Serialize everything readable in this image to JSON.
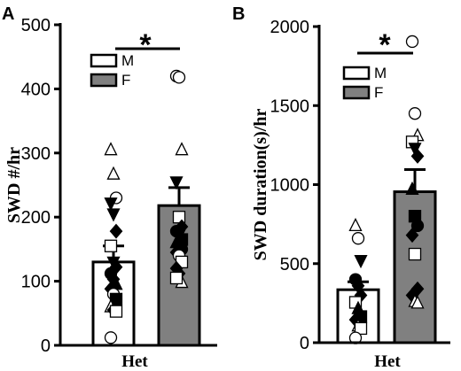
{
  "chart_data": [
    {
      "panel": "A",
      "type": "bar",
      "ylabel": "SWD #/hr",
      "xlabel": "Het",
      "ylim": [
        0,
        500
      ],
      "yticks": [
        "0",
        "100",
        "200",
        "300",
        "400",
        "500"
      ],
      "legend": {
        "placement": "top-left",
        "entries": [
          "M",
          "F"
        ]
      },
      "significance": "*",
      "series": [
        {
          "name": "M",
          "mean": 130,
          "sem": 25,
          "fill": "#ffffff",
          "points": [
            {
              "y": 305,
              "shape": "triangle-open"
            },
            {
              "y": 267,
              "shape": "triangle-open"
            },
            {
              "y": 230,
              "shape": "circle-open"
            },
            {
              "y": 222,
              "shape": "triangle-down-filled"
            },
            {
              "y": 205,
              "shape": "triangle-down-filled"
            },
            {
              "y": 178,
              "shape": "diamond-filled"
            },
            {
              "y": 155,
              "shape": "square-open"
            },
            {
              "y": 130,
              "shape": "triangle-down-filled"
            },
            {
              "y": 122,
              "shape": "diamond-filled"
            },
            {
              "y": 112,
              "shape": "circle-filled"
            },
            {
              "y": 103,
              "shape": "diamond-filled"
            },
            {
              "y": 95,
              "shape": "triangle-up-filled"
            },
            {
              "y": 88,
              "shape": "diamond-filled"
            },
            {
              "y": 80,
              "shape": "circle-open"
            },
            {
              "y": 72,
              "shape": "square-filled"
            },
            {
              "y": 60,
              "shape": "triangle-open"
            },
            {
              "y": 55,
              "shape": "diamond-filled"
            },
            {
              "y": 53,
              "shape": "square-open"
            },
            {
              "y": 12,
              "shape": "circle-open"
            }
          ]
        },
        {
          "name": "F",
          "mean": 218,
          "sem": 28,
          "fill": "#808080",
          "points": [
            {
              "y": 420,
              "shape": "circle-open"
            },
            {
              "y": 418,
              "shape": "circle-open"
            },
            {
              "y": 305,
              "shape": "triangle-open"
            },
            {
              "y": 255,
              "shape": "triangle-down-filled"
            },
            {
              "y": 200,
              "shape": "square-open"
            },
            {
              "y": 185,
              "shape": "diamond-filled"
            },
            {
              "y": 178,
              "shape": "circle-filled"
            },
            {
              "y": 172,
              "shape": "triangle-down-filled"
            },
            {
              "y": 165,
              "shape": "square-filled"
            },
            {
              "y": 160,
              "shape": "triangle-up-filled"
            },
            {
              "y": 155,
              "shape": "diamond-filled"
            },
            {
              "y": 150,
              "shape": "circle-filled"
            },
            {
              "y": 145,
              "shape": "diamond-filled"
            },
            {
              "y": 140,
              "shape": "circle-open"
            },
            {
              "y": 130,
              "shape": "square-open"
            },
            {
              "y": 120,
              "shape": "diamond-filled"
            },
            {
              "y": 112,
              "shape": "diamond-filled"
            },
            {
              "y": 98,
              "shape": "triangle-open"
            },
            {
              "y": 105,
              "shape": "square-open"
            }
          ]
        }
      ]
    },
    {
      "panel": "B",
      "type": "bar",
      "ylabel": "SWD duration(s)/hr",
      "xlabel": "Het",
      "ylim": [
        0,
        2000
      ],
      "yticks": [
        "0",
        "500",
        "1000",
        "1500",
        "2000"
      ],
      "legend": {
        "placement": "top-left",
        "entries": [
          "M",
          "F"
        ]
      },
      "significance": "*",
      "series": [
        {
          "name": "M",
          "mean": 335,
          "sem": 50,
          "fill": "#ffffff",
          "points": [
            {
              "y": 740,
              "shape": "triangle-open"
            },
            {
              "y": 660,
              "shape": "circle-open"
            },
            {
              "y": 520,
              "shape": "triangle-down-filled"
            },
            {
              "y": 400,
              "shape": "circle-filled"
            },
            {
              "y": 360,
              "shape": "diamond-filled"
            },
            {
              "y": 300,
              "shape": "diamond-filled"
            },
            {
              "y": 255,
              "shape": "square-open"
            },
            {
              "y": 215,
              "shape": "triangle-up-filled"
            },
            {
              "y": 165,
              "shape": "square-filled"
            },
            {
              "y": 145,
              "shape": "diamond-filled"
            },
            {
              "y": 105,
              "shape": "triangle-open"
            },
            {
              "y": 90,
              "shape": "square-open"
            },
            {
              "y": 30,
              "shape": "circle-open"
            }
          ]
        },
        {
          "name": "F",
          "mean": 955,
          "sem": 140,
          "fill": "#808080",
          "points": [
            {
              "y": 1905,
              "shape": "circle-open"
            },
            {
              "y": 1450,
              "shape": "circle-open"
            },
            {
              "y": 1310,
              "shape": "triangle-open"
            },
            {
              "y": 1270,
              "shape": "square-open"
            },
            {
              "y": 1230,
              "shape": "triangle-down-filled"
            },
            {
              "y": 1180,
              "shape": "diamond-filled"
            },
            {
              "y": 970,
              "shape": "triangle-up-filled"
            },
            {
              "y": 800,
              "shape": "square-filled"
            },
            {
              "y": 740,
              "shape": "circle-filled"
            },
            {
              "y": 680,
              "shape": "diamond-filled"
            },
            {
              "y": 560,
              "shape": "square-open"
            },
            {
              "y": 340,
              "shape": "diamond-filled"
            },
            {
              "y": 300,
              "shape": "diamond-filled"
            },
            {
              "y": 260,
              "shape": "triangle-open"
            },
            {
              "y": 250,
              "shape": "triangle-open"
            }
          ]
        }
      ]
    }
  ]
}
